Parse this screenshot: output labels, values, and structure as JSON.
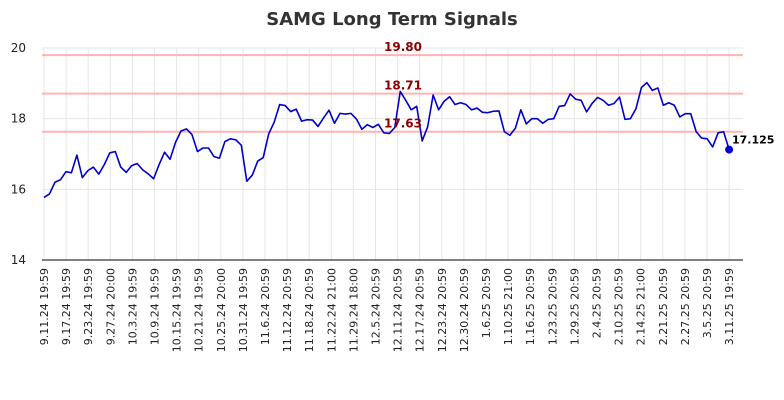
{
  "chart_data": {
    "type": "line",
    "title": "SAMG Long Term Signals",
    "xlabel": "",
    "ylabel": "",
    "ylim": [
      14,
      20
    ],
    "yticks": [
      14,
      16,
      18,
      20
    ],
    "grid": true,
    "legend": "none",
    "colors": {
      "line": "#0000cc",
      "reference_line": "#ffb3b3",
      "reference_label": "#8b0000",
      "grid": "#e6e6e6",
      "last_point": "#0000cc"
    },
    "x_tick_labels": [
      "9.11.24 19:59",
      "9.17.24 19:59",
      "9.23.24 19:59",
      "9.27.24 20:00",
      "10.3.24 19:59",
      "10.9.24 19:59",
      "10.15.24 19:59",
      "10.21.24 19:59",
      "10.25.24 20:00",
      "10.31.24 19:59",
      "11.6.24 20:59",
      "11.12.24 20:59",
      "11.18.24 20:59",
      "11.22.24 21:00",
      "11.29.24 18:00",
      "12.5.24 20:59",
      "12.11.24 20:59",
      "12.17.24 20:59",
      "12.23.24 20:59",
      "12.30.24 20:59",
      "1.6.25 20:59",
      "1.10.25 21:00",
      "1.16.25 20:59",
      "1.23.25 20:59",
      "1.29.25 20:59",
      "2.4.25 20:59",
      "2.10.25 20:59",
      "2.14.25 21:00",
      "2.21.25 20:59",
      "2.27.25 20:59",
      "3.5.25 20:59",
      "3.11.25 19:59"
    ],
    "reference_lines": [
      {
        "value": 19.8,
        "label": "19.80"
      },
      {
        "value": 18.71,
        "label": "18.71"
      },
      {
        "value": 17.63,
        "label": "17.63"
      }
    ],
    "series": [
      {
        "values": [
          15.77,
          15.87,
          16.2,
          16.27,
          16.5,
          16.47,
          16.97,
          16.33,
          16.53,
          16.63,
          16.43,
          16.7,
          17.03,
          17.07,
          16.63,
          16.48,
          16.67,
          16.73,
          16.55,
          16.44,
          16.3,
          16.7,
          17.05,
          16.85,
          17.33,
          17.65,
          17.71,
          17.55,
          17.07,
          17.17,
          17.17,
          16.93,
          16.88,
          17.35,
          17.43,
          17.4,
          17.25,
          16.23,
          16.4,
          16.8,
          16.9,
          17.57,
          17.9,
          18.4,
          18.37,
          18.2,
          18.27,
          17.93,
          17.97,
          17.96,
          17.78,
          18.02,
          18.24,
          17.87,
          18.15,
          18.13,
          18.15,
          17.99,
          17.7,
          17.83,
          17.75,
          17.84,
          17.6,
          17.58,
          17.75,
          18.77,
          18.52,
          18.25,
          18.35,
          17.37,
          17.77,
          18.67,
          18.25,
          18.49,
          18.62,
          18.4,
          18.45,
          18.4,
          18.25,
          18.3,
          18.18,
          18.17,
          18.21,
          18.22,
          17.63,
          17.53,
          17.73,
          18.25,
          17.85,
          18.0,
          18.0,
          17.87,
          17.98,
          18.0,
          18.35,
          18.37,
          18.7,
          18.55,
          18.52,
          18.19,
          18.43,
          18.6,
          18.52,
          18.38,
          18.43,
          18.61,
          17.98,
          18.0,
          18.28,
          18.88,
          19.02,
          18.8,
          18.87,
          18.38,
          18.45,
          18.38,
          18.05,
          18.14,
          18.14,
          17.63,
          17.45,
          17.43,
          17.2,
          17.6,
          17.63,
          17.125
        ]
      }
    ],
    "last_value_label": "17.125"
  }
}
